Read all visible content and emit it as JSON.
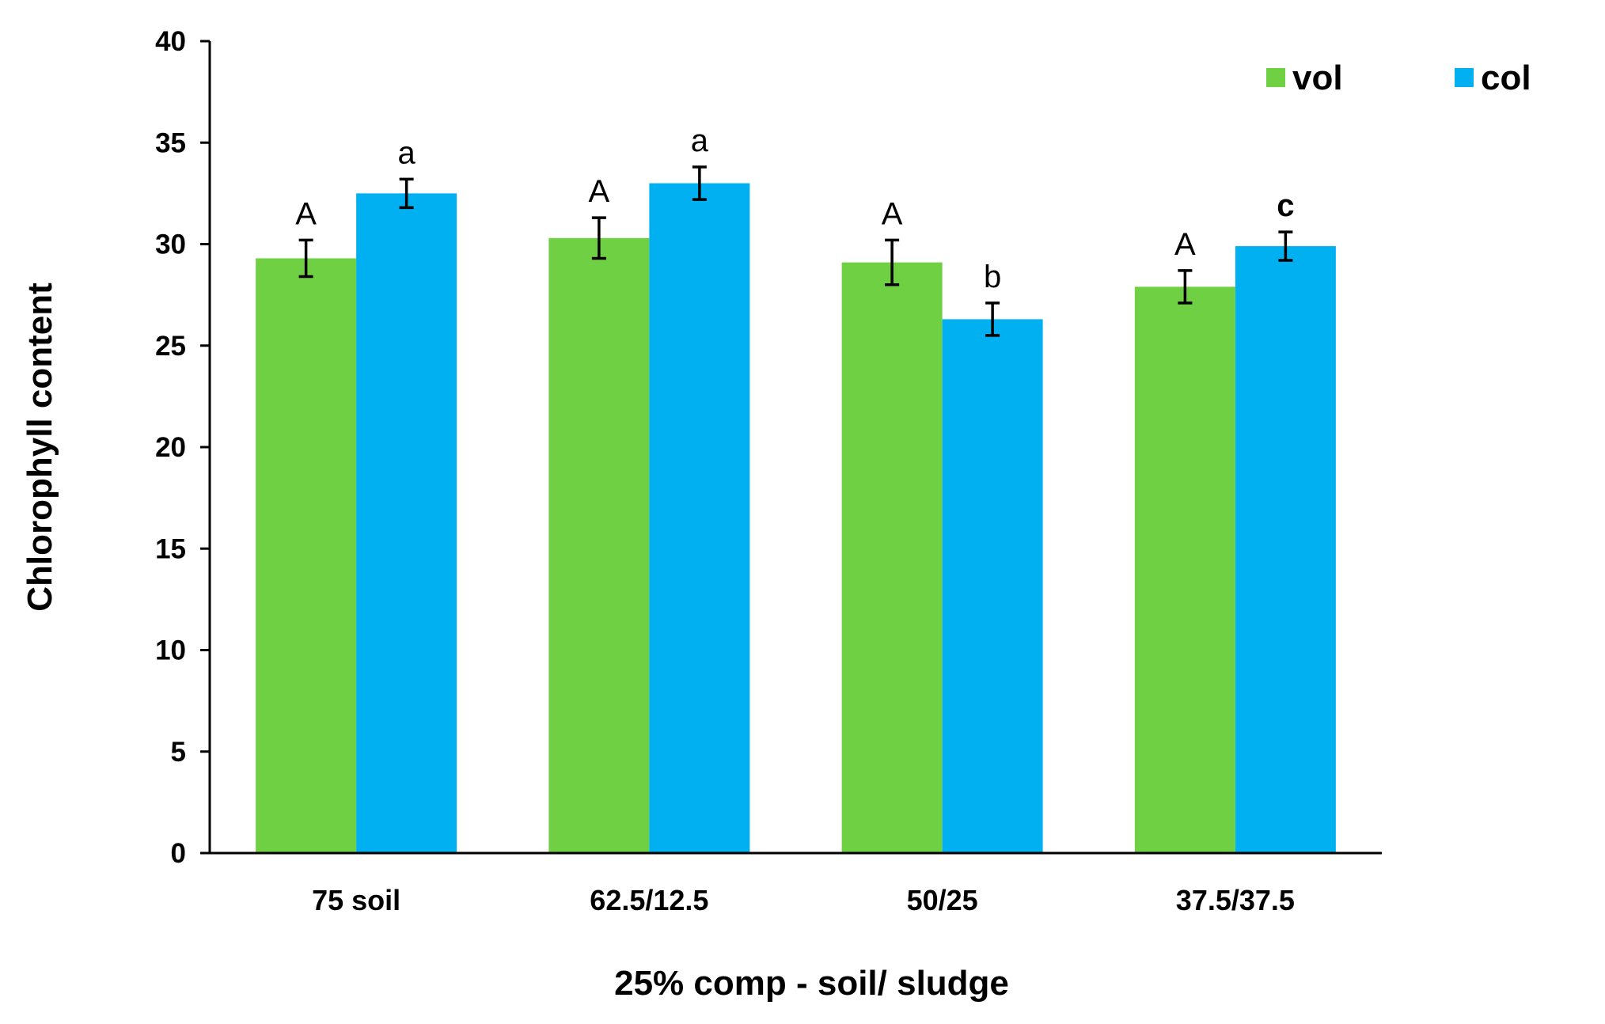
{
  "chart_data": {
    "type": "bar",
    "title": "",
    "xlabel": "25% comp - soil/ sludge",
    "ylabel": "Chlorophyll content",
    "ylim": [
      0,
      40
    ],
    "yticks": [
      0,
      5,
      10,
      15,
      20,
      25,
      30,
      35,
      40
    ],
    "grid": false,
    "legend_position": "top-right",
    "categories": [
      "75 soil",
      "62.5/12.5",
      "50/25",
      "37.5/37.5"
    ],
    "series": [
      {
        "name": "vol",
        "color": "#70D044",
        "values": [
          29.3,
          30.3,
          29.1,
          27.9
        ],
        "errors": [
          0.9,
          1.0,
          1.1,
          0.8
        ],
        "significance": [
          "A",
          "A",
          "A",
          "A"
        ]
      },
      {
        "name": "col",
        "color": "#00B0F0",
        "values": [
          32.5,
          33.0,
          26.3,
          29.9
        ],
        "errors": [
          0.7,
          0.8,
          0.8,
          0.7
        ],
        "significance": [
          "a",
          "a",
          "b",
          "c"
        ]
      }
    ]
  }
}
